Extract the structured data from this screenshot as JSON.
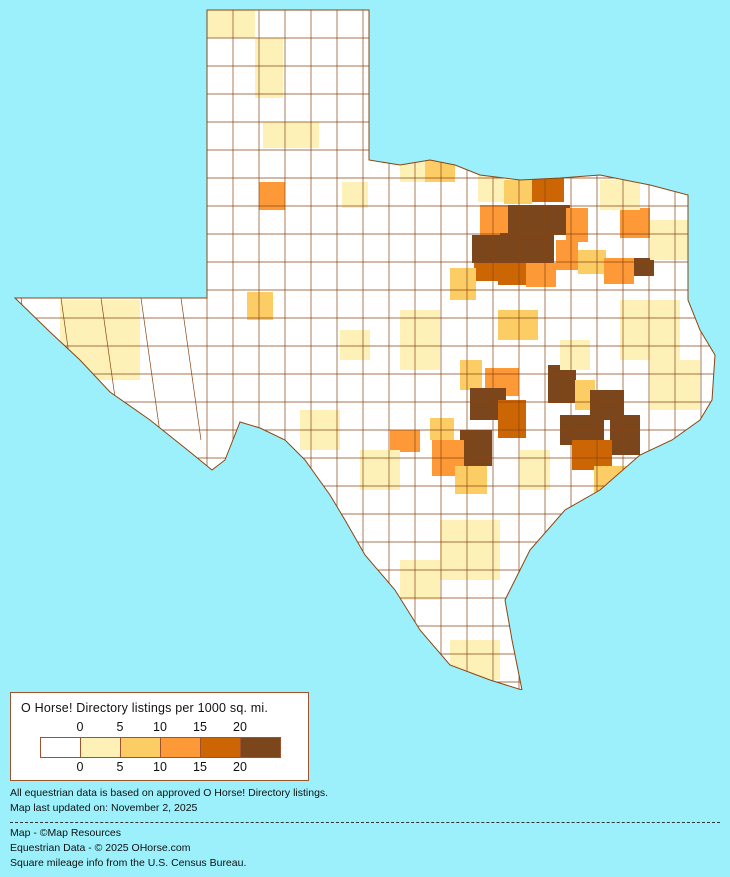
{
  "legend": {
    "title": "O Horse! Directory listings per 1000 sq. mi.",
    "ticks_top": [
      "0",
      "5",
      "10",
      "15",
      "20"
    ],
    "ticks_bottom": [
      "0",
      "5",
      "10",
      "15",
      "20"
    ],
    "bins": [
      {
        "range": "0",
        "color": "#ffffff"
      },
      {
        "range": "0-5",
        "color": "#fdf1b8"
      },
      {
        "range": "5-10",
        "color": "#fdcd65"
      },
      {
        "range": "10-15",
        "color": "#fd9a37"
      },
      {
        "range": "15-20",
        "color": "#cc6504"
      },
      {
        "range": "20+",
        "color": "#7b461c"
      }
    ]
  },
  "notes": {
    "line1": "All equestrian data is based on approved O Horse! Directory listings.",
    "line2": "Map last updated on: November 2, 2025"
  },
  "credits": {
    "map": "Map - ©Map Resources",
    "data": "Equestrian Data - © 2025 OHorse.com",
    "census": "Square mileage info from the U.S. Census Bureau."
  },
  "colors": {
    "background": "#9bf0fb",
    "border": "#8b4513"
  }
}
